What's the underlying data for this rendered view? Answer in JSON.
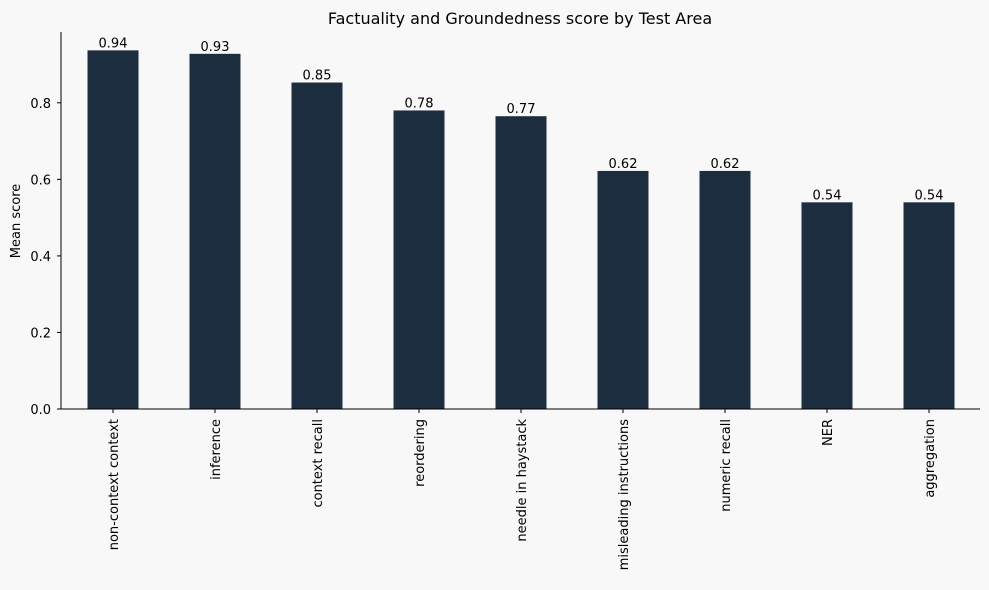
{
  "chart_data": {
    "type": "bar",
    "title": "Factuality and Groundedness score by Test Area",
    "xlabel": "",
    "ylabel": "Mean score",
    "categories": [
      "non-context context",
      "inference",
      "context recall",
      "reordering",
      "needle in haystack",
      "misleading instructions",
      "numeric recall",
      "NER",
      "aggregation"
    ],
    "values": [
      0.937,
      0.928,
      0.853,
      0.78,
      0.765,
      0.622,
      0.622,
      0.54,
      0.54
    ],
    "data_labels": [
      "0.94",
      "0.93",
      "0.85",
      "0.78",
      "0.77",
      "0.62",
      "0.62",
      "0.54",
      "0.54"
    ],
    "ylim": [
      0,
      0.985
    ],
    "yticks": [
      0.0,
      0.2,
      0.4,
      0.6,
      0.8
    ],
    "ytick_labels": [
      "0.0",
      "0.2",
      "0.4",
      "0.6",
      "0.8"
    ],
    "grid": false,
    "legend": "none",
    "bar_color": "#1c2d40",
    "background_color": "#f8f8f8"
  }
}
